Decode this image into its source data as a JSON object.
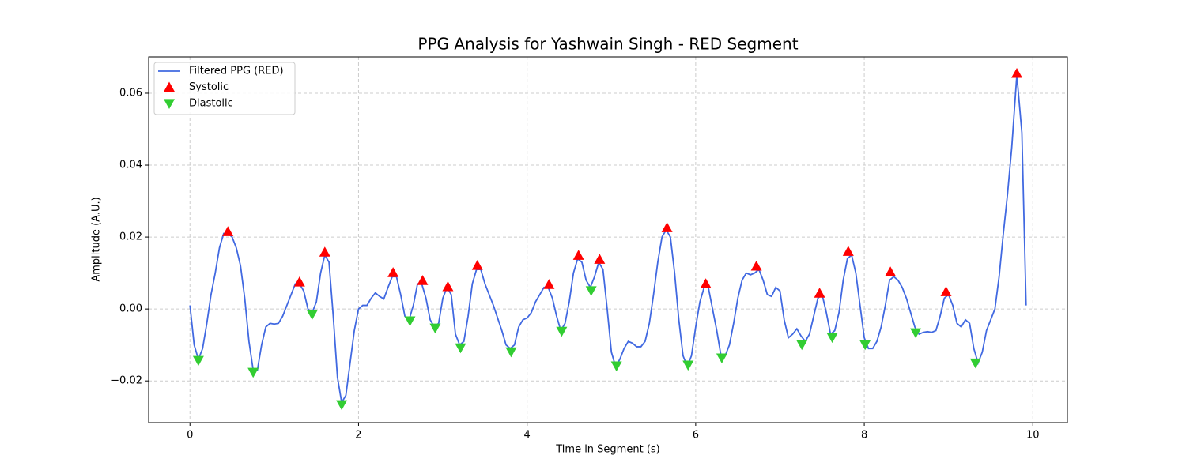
{
  "chart_data": {
    "type": "line",
    "title": "PPG Analysis for Yashwain Singh - RED Segment",
    "xlabel": "Time in Segment (s)",
    "ylabel": "Amplitude (A.U.)",
    "xlim": [
      -0.49,
      10.41
    ],
    "ylim": [
      -0.0316,
      0.0701
    ],
    "xticks": [
      0,
      2,
      4,
      6,
      8,
      10
    ],
    "yticks": [
      {
        "value": -0.02,
        "label": "−0.02"
      },
      {
        "value": 0,
        "label": "0.00"
      },
      0.02,
      0.04,
      0.06
    ],
    "grid": true,
    "legend": "upper left",
    "series": [
      {
        "name": "Filtered PPG (RED)",
        "color": "#4169e1",
        "x": [
          0,
          0.05,
          0.1,
          0.15,
          0.2,
          0.25,
          0.3,
          0.35,
          0.4,
          0.45,
          0.5,
          0.55,
          0.6,
          0.65,
          0.7,
          0.75,
          0.8,
          0.85,
          0.9,
          0.95,
          1,
          1.05,
          1.1,
          1.15,
          1.2,
          1.25,
          1.3,
          1.35,
          1.4,
          1.45,
          1.5,
          1.55,
          1.6,
          1.65,
          1.7,
          1.75,
          1.8,
          1.85,
          1.9,
          1.95,
          2,
          2.05,
          2.1,
          2.15,
          2.2,
          2.25,
          2.3,
          2.35,
          2.4,
          2.45,
          2.5,
          2.55,
          2.6,
          2.65,
          2.7,
          2.75,
          2.8,
          2.85,
          2.9,
          2.95,
          3,
          3.05,
          3.1,
          3.15,
          3.2,
          3.25,
          3.3,
          3.35,
          3.4,
          3.45,
          3.5,
          3.6,
          3.7,
          3.75,
          3.8,
          3.85,
          3.9,
          3.95,
          4,
          4.05,
          4.1,
          4.15,
          4.2,
          4.25,
          4.3,
          4.35,
          4.4,
          4.45,
          4.5,
          4.55,
          4.6,
          4.65,
          4.7,
          4.75,
          4.8,
          4.85,
          4.9,
          4.95,
          5,
          5.05,
          5.1,
          5.15,
          5.2,
          5.25,
          5.3,
          5.35,
          5.4,
          5.45,
          5.5,
          5.55,
          5.6,
          5.65,
          5.7,
          5.75,
          5.8,
          5.85,
          5.9,
          5.95,
          6,
          6.05,
          6.1,
          6.15,
          6.2,
          6.25,
          6.3,
          6.35,
          6.4,
          6.45,
          6.5,
          6.55,
          6.6,
          6.65,
          6.7,
          6.75,
          6.8,
          6.85,
          6.9,
          6.95,
          7,
          7.05,
          7.1,
          7.15,
          7.2,
          7.25,
          7.3,
          7.35,
          7.4,
          7.45,
          7.5,
          7.55,
          7.6,
          7.65,
          7.7,
          7.75,
          7.8,
          7.85,
          7.9,
          7.95,
          8,
          8.05,
          8.1,
          8.15,
          8.2,
          8.25,
          8.3,
          8.35,
          8.4,
          8.45,
          8.5,
          8.55,
          8.6,
          8.65,
          8.7,
          8.75,
          8.8,
          8.85,
          8.9,
          8.95,
          9,
          9.05,
          9.1,
          9.15,
          9.2,
          9.25,
          9.3,
          9.35,
          9.4,
          9.45,
          9.5,
          9.55,
          9.6,
          9.65,
          9.7,
          9.75,
          9.81,
          9.87,
          9.92
        ],
        "values": [
          0.001,
          -0.01,
          -0.014,
          -0.011,
          -0.004,
          0.004,
          0.01,
          0.017,
          0.021,
          0.021,
          0.02,
          0.017,
          0.012,
          0.003,
          -0.009,
          -0.017,
          -0.017,
          -0.01,
          -0.005,
          -0.004,
          -0.0042,
          -0.004,
          -0.002,
          0.001,
          0.004,
          0.007,
          0.007,
          0.005,
          0,
          -0.001,
          0.002,
          0.01,
          0.015,
          0.013,
          -0.002,
          -0.019,
          -0.026,
          -0.024,
          -0.015,
          -0.006,
          0,
          0.001,
          0.001,
          0.003,
          0.0045,
          0.0035,
          0.0028,
          0.006,
          0.009,
          0.009,
          0.004,
          -0.002,
          -0.003,
          0.001,
          0.007,
          0.007,
          0.003,
          -0.003,
          -0.005,
          -0.004,
          0.003,
          0.006,
          0.004,
          -0.007,
          -0.01,
          -0.009,
          -0.002,
          0.007,
          0.011,
          0.011,
          0.007,
          0.001,
          -0.006,
          -0.01,
          -0.011,
          -0.01,
          -0.005,
          -0.003,
          -0.0025,
          -0.001,
          0.002,
          0.004,
          0.006,
          0.006,
          0.003,
          -0.002,
          -0.006,
          -0.004,
          0.002,
          0.01,
          0.014,
          0.013,
          0.008,
          0.006,
          0.009,
          0.013,
          0.011,
          0,
          -0.012,
          -0.016,
          -0.014,
          -0.011,
          -0.009,
          -0.0095,
          -0.0105,
          -0.0105,
          -0.009,
          -0.004,
          0.004,
          0.013,
          0.02,
          0.022,
          0.02,
          0.01,
          -0.003,
          -0.013,
          -0.016,
          -0.013,
          -0.005,
          0.002,
          0.006,
          0.006,
          0,
          -0.006,
          -0.013,
          -0.013,
          -0.01,
          -0.004,
          0.003,
          0.008,
          0.01,
          0.0095,
          0.01,
          0.011,
          0.008,
          0.004,
          0.0035,
          0.006,
          0.005,
          -0.003,
          -0.008,
          -0.007,
          -0.0055,
          -0.0075,
          -0.009,
          -0.007,
          -0.002,
          0.003,
          0.004,
          -0.001,
          -0.007,
          -0.006,
          -0.001,
          0.008,
          0.014,
          0.015,
          0.01,
          0.001,
          -0.008,
          -0.011,
          -0.011,
          -0.009,
          -0.005,
          0.001,
          0.008,
          0.009,
          0.008,
          0.006,
          0.003,
          -0.001,
          -0.005,
          -0.007,
          -0.0065,
          -0.0063,
          -0.0065,
          -0.006,
          -0.002,
          0.003,
          0.004,
          0.001,
          -0.004,
          -0.005,
          -0.003,
          -0.004,
          -0.011,
          -0.015,
          -0.012,
          -0.006,
          -0.003,
          0,
          0.009,
          0.021,
          0.032,
          0.045,
          0.065,
          0.049,
          0.001
        ]
      },
      {
        "name": "Systolic",
        "color": "#ff0000",
        "marker": "triangle-up",
        "x": [
          0.45,
          1.3,
          1.6,
          2.41,
          2.76,
          3.06,
          3.41,
          4.26,
          4.61,
          4.86,
          5.66,
          6.12,
          6.72,
          7.47,
          7.81,
          8.31,
          8.97,
          9.81
        ],
        "values": [
          0.0215,
          0.0075,
          0.0158,
          0.0101,
          0.0079,
          0.0062,
          0.0121,
          0.0068,
          0.0149,
          0.0138,
          0.0226,
          0.007,
          0.0119,
          0.0044,
          0.016,
          0.0103,
          0.0048,
          0.0655
        ]
      },
      {
        "name": "Diastolic",
        "color": "#32cd32",
        "marker": "triangle-down",
        "x": [
          0.1,
          0.75,
          1.45,
          1.8,
          2.61,
          2.91,
          3.21,
          3.81,
          4.41,
          4.76,
          5.06,
          5.91,
          6.31,
          7.26,
          7.62,
          8.01,
          8.61,
          9.32
        ],
        "values": [
          -0.0143,
          -0.0176,
          -0.0015,
          -0.0266,
          -0.0033,
          -0.0053,
          -0.0108,
          -0.0119,
          -0.0062,
          0.0051,
          -0.0158,
          -0.0156,
          -0.0136,
          -0.0099,
          -0.0079,
          -0.0099,
          -0.0066,
          -0.015
        ]
      }
    ]
  }
}
